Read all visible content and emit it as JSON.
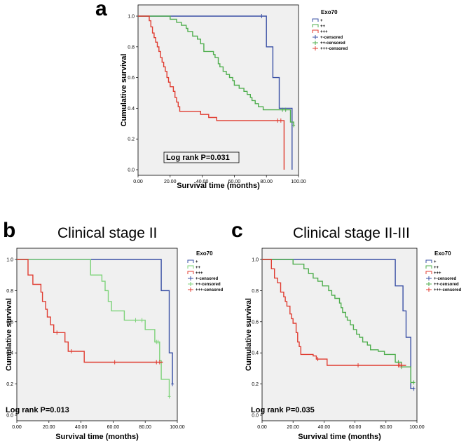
{
  "chart_data": [
    {
      "type": "line",
      "panel": "a",
      "title": "",
      "xlabel": "Survival time (months)",
      "ylabel": "Cumulative survival",
      "xlim": [
        0,
        100
      ],
      "ylim": [
        0,
        1
      ],
      "xticks": [
        "0.00",
        "20.00",
        "40.00",
        "60.00",
        "80.00",
        "100.00"
      ],
      "yticks": [
        "0.0",
        "0.2",
        "0.4",
        "0.6",
        "0.8",
        "1.0"
      ],
      "legend_title": "Exo70",
      "legend": [
        "+",
        "++",
        "+++",
        "+-censored",
        "++-censored",
        "+++-censored"
      ],
      "annotation": "Log rank P=0.031",
      "grid": false,
      "series": [
        {
          "name": "+",
          "color": "#3a50a5",
          "steps": [
            [
              0,
              1.0
            ],
            [
              78,
              1.0
            ],
            [
              80,
              0.8
            ],
            [
              84,
              0.6
            ],
            [
              88,
              0.4
            ],
            [
              96,
              0.0
            ]
          ],
          "censored": [
            [
              77,
              1.0
            ]
          ]
        },
        {
          "name": "++",
          "color": "#4fae4e",
          "steps": [
            [
              0,
              1.0
            ],
            [
              18,
              1.0
            ],
            [
              20,
              0.98
            ],
            [
              24,
              0.96
            ],
            [
              27,
              0.94
            ],
            [
              30,
              0.92
            ],
            [
              31,
              0.9
            ],
            [
              34,
              0.87
            ],
            [
              37,
              0.85
            ],
            [
              39,
              0.82
            ],
            [
              41,
              0.77
            ],
            [
              47,
              0.75
            ],
            [
              48,
              0.73
            ],
            [
              50,
              0.69
            ],
            [
              51,
              0.67
            ],
            [
              53,
              0.64
            ],
            [
              55,
              0.62
            ],
            [
              57,
              0.6
            ],
            [
              59,
              0.58
            ],
            [
              60,
              0.55
            ],
            [
              63,
              0.53
            ],
            [
              66,
              0.51
            ],
            [
              68,
              0.49
            ],
            [
              70,
              0.47
            ],
            [
              71,
              0.45
            ],
            [
              73,
              0.43
            ],
            [
              75,
              0.41
            ],
            [
              78,
              0.39
            ],
            [
              93,
              0.39
            ],
            [
              95,
              0.31
            ],
            [
              97,
              0.29
            ]
          ],
          "censored": [
            [
              90,
              0.39
            ],
            [
              92,
              0.39
            ],
            [
              97,
              0.29
            ]
          ]
        },
        {
          "name": "+++",
          "color": "#e03c31",
          "steps": [
            [
              0,
              1.0
            ],
            [
              6,
              1.0
            ],
            [
              7,
              0.97
            ],
            [
              8,
              0.93
            ],
            [
              9,
              0.89
            ],
            [
              10,
              0.86
            ],
            [
              11,
              0.83
            ],
            [
              12,
              0.8
            ],
            [
              13,
              0.77
            ],
            [
              14,
              0.73
            ],
            [
              15,
              0.7
            ],
            [
              16,
              0.67
            ],
            [
              17,
              0.64
            ],
            [
              18,
              0.6
            ],
            [
              19,
              0.57
            ],
            [
              20,
              0.54
            ],
            [
              22,
              0.51
            ],
            [
              23,
              0.47
            ],
            [
              24,
              0.44
            ],
            [
              25,
              0.41
            ],
            [
              26,
              0.38
            ],
            [
              37,
              0.38
            ],
            [
              39,
              0.36
            ],
            [
              44,
              0.34
            ],
            [
              49,
              0.32
            ],
            [
              91,
              0.32
            ],
            [
              91,
              0.0
            ]
          ],
          "censored": [
            [
              87,
              0.32
            ],
            [
              89,
              0.32
            ]
          ]
        }
      ]
    },
    {
      "type": "line",
      "panel": "b",
      "title": "Clinical stage II",
      "xlabel": "Survival time (months)",
      "ylabel": "Cumulative survival",
      "xlim": [
        0,
        100
      ],
      "ylim": [
        0,
        1
      ],
      "xticks": [
        "0.00",
        "20.00",
        "40.00",
        "60.00",
        "80.00",
        "100.00"
      ],
      "yticks": [
        "0.0",
        "0.2",
        "0.4",
        "0.6",
        "0.8",
        "1.0"
      ],
      "legend_title": "Exo70",
      "legend": [
        "+",
        "++",
        "+++",
        "+-censored",
        "++-censored",
        "+++-censored"
      ],
      "annotation": "Log rank P=0.013",
      "grid": false,
      "series": [
        {
          "name": "+",
          "color": "#3a50a5",
          "steps": [
            [
              0,
              1.0
            ],
            [
              89,
              1.0
            ],
            [
              90,
              0.8
            ],
            [
              95,
              0.4
            ],
            [
              97,
              0.2
            ]
          ],
          "censored": [
            [
              97,
              0.2
            ]
          ]
        },
        {
          "name": "++",
          "color": "#7ed37a",
          "steps": [
            [
              0,
              1.0
            ],
            [
              45,
              1.0
            ],
            [
              46,
              0.9
            ],
            [
              53,
              0.86
            ],
            [
              55,
              0.8
            ],
            [
              57,
              0.73
            ],
            [
              59,
              0.67
            ],
            [
              67,
              0.61
            ],
            [
              74,
              0.61
            ],
            [
              77,
              0.61
            ],
            [
              80,
              0.55
            ],
            [
              86,
              0.47
            ],
            [
              89,
              0.35
            ],
            [
              90,
              0.23
            ],
            [
              95,
              0.12
            ]
          ],
          "censored": [
            [
              74,
              0.61
            ],
            [
              78,
              0.61
            ],
            [
              87,
              0.47
            ],
            [
              88,
              0.47
            ],
            [
              95,
              0.12
            ]
          ]
        },
        {
          "name": "+++",
          "color": "#e03c31",
          "steps": [
            [
              0,
              1.0
            ],
            [
              6,
              1.0
            ],
            [
              7,
              0.9
            ],
            [
              10,
              0.84
            ],
            [
              15,
              0.79
            ],
            [
              16,
              0.73
            ],
            [
              18,
              0.68
            ],
            [
              19,
              0.63
            ],
            [
              21,
              0.58
            ],
            [
              23,
              0.53
            ],
            [
              27,
              0.53
            ],
            [
              30,
              0.47
            ],
            [
              32,
              0.41
            ],
            [
              36,
              0.41
            ],
            [
              42,
              0.34
            ],
            [
              91,
              0.34
            ]
          ],
          "censored": [
            [
              25,
              0.53
            ],
            [
              34,
              0.41
            ],
            [
              61,
              0.34
            ],
            [
              87,
              0.34
            ],
            [
              89,
              0.34
            ]
          ]
        }
      ]
    },
    {
      "type": "line",
      "panel": "c",
      "title": "Clinical stage II-III",
      "xlabel": "Survival time (months)",
      "ylabel": "Cumulative survival",
      "xlim": [
        0,
        100
      ],
      "ylim": [
        0,
        1
      ],
      "xticks": [
        "0.00",
        "20.00",
        "40.00",
        "60.00",
        "80.00",
        "100.00"
      ],
      "yticks": [
        "0.0",
        "0.2",
        "0.4",
        "0.6",
        "0.8",
        "1.0"
      ],
      "legend_title": "Exo70",
      "legend": [
        "+",
        "++",
        "+++",
        "+-censored",
        "++-censored",
        "+++-censored"
      ],
      "annotation": "Log rank P=0.035",
      "grid": false,
      "series": [
        {
          "name": "+",
          "color": "#3a50a5",
          "steps": [
            [
              0,
              1.0
            ],
            [
              84,
              1.0
            ],
            [
              86,
              0.83
            ],
            [
              91,
              0.67
            ],
            [
              93,
              0.5
            ],
            [
              96,
              0.17
            ],
            [
              98,
              0.17
            ]
          ],
          "censored": [
            [
              98,
              0.17
            ]
          ]
        },
        {
          "name": "++",
          "color": "#4fae4e",
          "steps": [
            [
              0,
              1.0
            ],
            [
              18,
              1.0
            ],
            [
              20,
              0.97
            ],
            [
              27,
              0.94
            ],
            [
              30,
              0.91
            ],
            [
              33,
              0.88
            ],
            [
              36,
              0.86
            ],
            [
              39,
              0.83
            ],
            [
              43,
              0.8
            ],
            [
              45,
              0.77
            ],
            [
              47,
              0.75
            ],
            [
              50,
              0.72
            ],
            [
              51,
              0.69
            ],
            [
              52,
              0.66
            ],
            [
              54,
              0.63
            ],
            [
              55,
              0.61
            ],
            [
              57,
              0.58
            ],
            [
              59,
              0.55
            ],
            [
              61,
              0.52
            ],
            [
              63,
              0.5
            ],
            [
              65,
              0.47
            ],
            [
              68,
              0.45
            ],
            [
              70,
              0.42
            ],
            [
              75,
              0.41
            ],
            [
              79,
              0.39
            ],
            [
              84,
              0.39
            ],
            [
              86,
              0.34
            ],
            [
              90,
              0.31
            ],
            [
              94,
              0.31
            ],
            [
              96,
              0.21
            ],
            [
              98,
              0.21
            ]
          ],
          "censored": [
            [
              88,
              0.34
            ],
            [
              90,
              0.31
            ],
            [
              98,
              0.21
            ]
          ]
        },
        {
          "name": "+++",
          "color": "#e03c31",
          "steps": [
            [
              0,
              1.0
            ],
            [
              5,
              1.0
            ],
            [
              6,
              0.94
            ],
            [
              8,
              0.88
            ],
            [
              10,
              0.85
            ],
            [
              12,
              0.79
            ],
            [
              14,
              0.76
            ],
            [
              15,
              0.73
            ],
            [
              16,
              0.7
            ],
            [
              18,
              0.65
            ],
            [
              19,
              0.62
            ],
            [
              20,
              0.59
            ],
            [
              22,
              0.53
            ],
            [
              23,
              0.47
            ],
            [
              24,
              0.44
            ],
            [
              25,
              0.39
            ],
            [
              33,
              0.38
            ],
            [
              35,
              0.36
            ],
            [
              39,
              0.36
            ],
            [
              42,
              0.32
            ],
            [
              93,
              0.32
            ]
          ],
          "censored": [
            [
              36,
              0.36
            ],
            [
              62,
              0.32
            ],
            [
              88,
              0.32
            ],
            [
              89,
              0.32
            ],
            [
              90,
              0.32
            ]
          ]
        }
      ]
    }
  ],
  "panel_letters": [
    "a",
    "b",
    "c"
  ],
  "panel_titles": [
    "Clinical stage II",
    "Clinical stage II-III"
  ]
}
